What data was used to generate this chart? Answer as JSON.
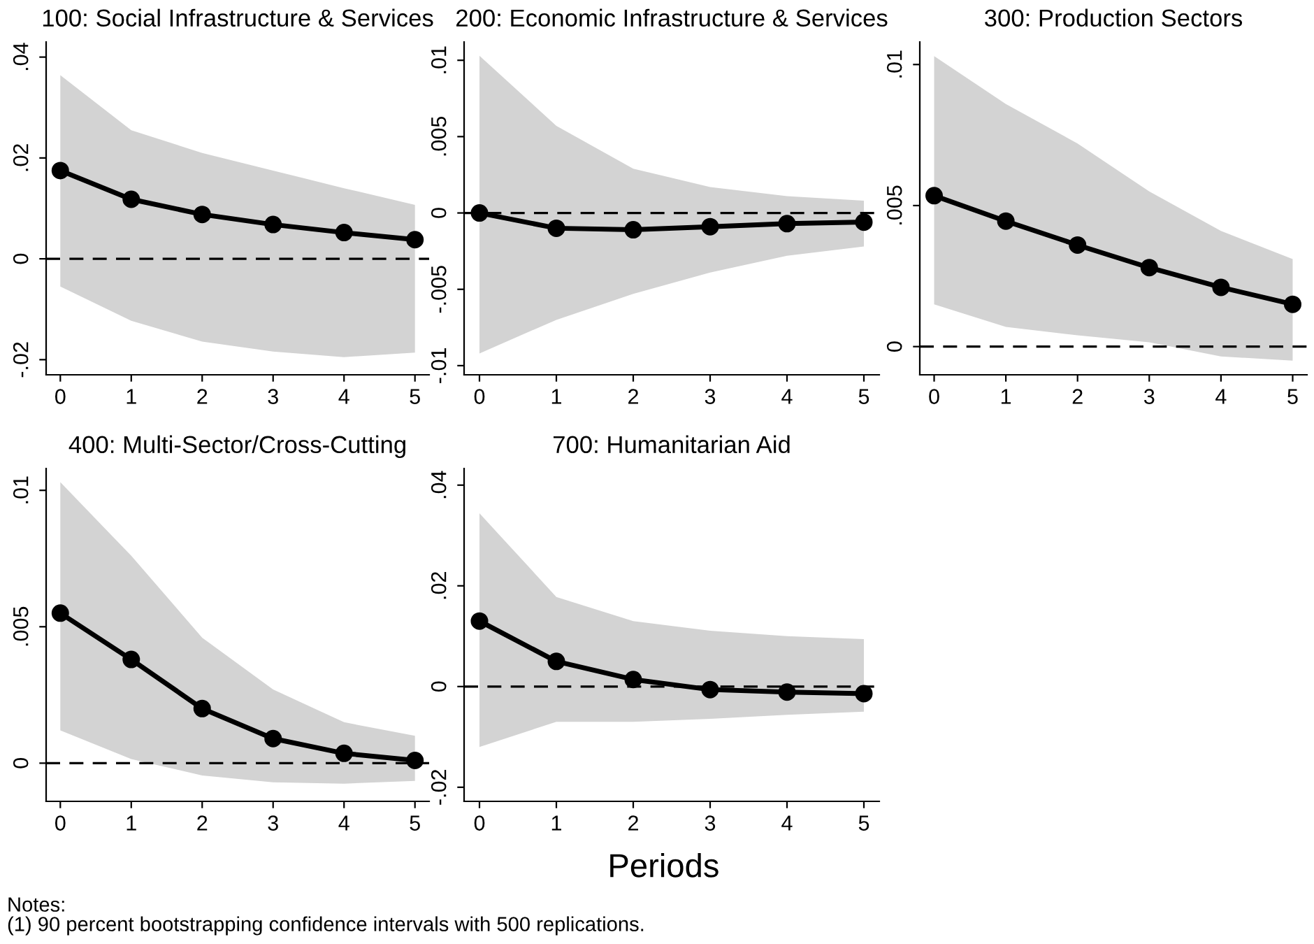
{
  "chart_data": [
    {
      "type": "line",
      "title": "100: Social Infrastructure & Services",
      "x": [
        0,
        1,
        2,
        3,
        4,
        5
      ],
      "xlim": [
        -0.2,
        5.2
      ],
      "xticks": [
        0,
        1,
        2,
        3,
        4,
        5
      ],
      "ylim": [
        -0.023,
        0.043
      ],
      "yticks": [
        {
          "value": -0.02,
          "label": "-.02"
        },
        0,
        {
          "value": 0.02,
          "label": ".02"
        },
        {
          "value": 0.04,
          "label": ".04"
        }
      ],
      "marker": "circle",
      "grid": false,
      "series": [
        {
          "color": "#000000",
          "values": [
            0.0175,
            0.0118,
            0.0088,
            0.0068,
            0.0052,
            0.0038
          ],
          "lower": [
            -0.0055,
            -0.0123,
            -0.0164,
            -0.0184,
            -0.0195,
            -0.0186
          ],
          "upper": [
            0.0364,
            0.0255,
            0.021,
            0.0175,
            0.014,
            0.0107
          ]
        }
      ],
      "ref_lines": [
        {
          "axis": "y",
          "value": 0,
          "line_style": "dashed",
          "color": "#000000"
        }
      ]
    },
    {
      "type": "line",
      "title": "200: Economic Infrastructure & Services",
      "x": [
        0,
        1,
        2,
        3,
        4,
        5
      ],
      "xlim": [
        -0.2,
        5.2
      ],
      "xticks": [
        0,
        1,
        2,
        3,
        4,
        5
      ],
      "ylim": [
        -0.0106,
        0.0112
      ],
      "yticks": [
        {
          "value": -0.01,
          "label": "-.01"
        },
        {
          "value": -0.005,
          "label": "-.005"
        },
        0,
        {
          "value": 0.005,
          "label": ".005"
        },
        {
          "value": 0.01,
          "label": ".01"
        }
      ],
      "marker": "circle",
      "grid": false,
      "series": [
        {
          "color": "#000000",
          "values": [
            0,
            -0.001,
            -0.0011,
            -0.0009,
            -0.0007,
            -0.0006
          ],
          "lower": [
            -0.0092,
            -0.007,
            -0.0053,
            -0.0039,
            -0.0028,
            -0.0022
          ],
          "upper": [
            0.0103,
            0.0057,
            0.0029,
            0.0017,
            0.0011,
            0.0008
          ]
        }
      ],
      "ref_lines": [
        {
          "axis": "y",
          "value": 0,
          "line_style": "dashed",
          "color": "#000000"
        }
      ]
    },
    {
      "type": "line",
      "title": "300: Production Sectors",
      "x": [
        0,
        1,
        2,
        3,
        4,
        5
      ],
      "xlim": [
        -0.2,
        5.2
      ],
      "xticks": [
        0,
        1,
        2,
        3,
        4,
        5
      ],
      "ylim": [
        -0.001,
        0.0108
      ],
      "yticks": [
        0,
        {
          "value": 0.005,
          "label": ".005"
        },
        {
          "value": 0.01,
          "label": ".01"
        }
      ],
      "marker": "circle",
      "grid": false,
      "series": [
        {
          "color": "#000000",
          "values": [
            0.00535,
            0.00445,
            0.0036,
            0.0028,
            0.0021,
            0.0015
          ],
          "lower": [
            0.0015,
            0.0007,
            0.0004,
            0.00015,
            -0.00035,
            -0.0005
          ],
          "upper": [
            0.0103,
            0.0086,
            0.0072,
            0.0055,
            0.0041,
            0.0031
          ]
        }
      ],
      "ref_lines": [
        {
          "axis": "y",
          "value": 0,
          "line_style": "dashed",
          "color": "#000000"
        }
      ]
    },
    {
      "type": "line",
      "title": "400: Multi-Sector/Cross-Cutting",
      "x": [
        0,
        1,
        2,
        3,
        4,
        5
      ],
      "xlim": [
        -0.2,
        5.2
      ],
      "xticks": [
        0,
        1,
        2,
        3,
        4,
        5
      ],
      "ylim": [
        -0.0014,
        0.0108
      ],
      "yticks": [
        0,
        {
          "value": 0.005,
          "label": ".005"
        },
        {
          "value": 0.01,
          "label": ".01"
        }
      ],
      "marker": "circle",
      "grid": false,
      "series": [
        {
          "color": "#000000",
          "values": [
            0.0055,
            0.0038,
            0.002,
            0.0009,
            0.00036,
            0.0001
          ],
          "lower": [
            0.0012,
            0.00015,
            -0.00045,
            -0.0007,
            -0.00075,
            -0.00065
          ],
          "upper": [
            0.0103,
            0.0076,
            0.0046,
            0.0027,
            0.0015,
            0.001
          ]
        }
      ],
      "ref_lines": [
        {
          "axis": "y",
          "value": 0,
          "line_style": "dashed",
          "color": "#000000"
        }
      ]
    },
    {
      "type": "line",
      "title": "700: Humanitarian Aid",
      "xlabel": "Periods",
      "x": [
        0,
        1,
        2,
        3,
        4,
        5
      ],
      "xlim": [
        -0.2,
        5.2
      ],
      "xticks": [
        0,
        1,
        2,
        3,
        4,
        5
      ],
      "ylim": [
        -0.0228,
        0.0433
      ],
      "yticks": [
        {
          "value": -0.02,
          "label": "-.02"
        },
        0,
        {
          "value": 0.02,
          "label": ".02"
        },
        {
          "value": 0.04,
          "label": ".04"
        }
      ],
      "marker": "circle",
      "grid": false,
      "series": [
        {
          "color": "#000000",
          "values": [
            0.013,
            0.005,
            0.0014,
            -0.0006,
            -0.0011,
            -0.0014
          ],
          "lower": [
            -0.012,
            -0.007,
            -0.007,
            -0.0064,
            -0.0056,
            -0.005
          ],
          "upper": [
            0.0344,
            0.0178,
            0.013,
            0.0111,
            0.01,
            0.0094
          ]
        }
      ],
      "ref_lines": [
        {
          "axis": "y",
          "value": 0,
          "line_style": "dashed",
          "color": "#000000"
        }
      ],
      "annotations": [
        "Notes:",
        "(1) 90 percent bootstrapping confidence intervals with 500 replications."
      ]
    }
  ]
}
